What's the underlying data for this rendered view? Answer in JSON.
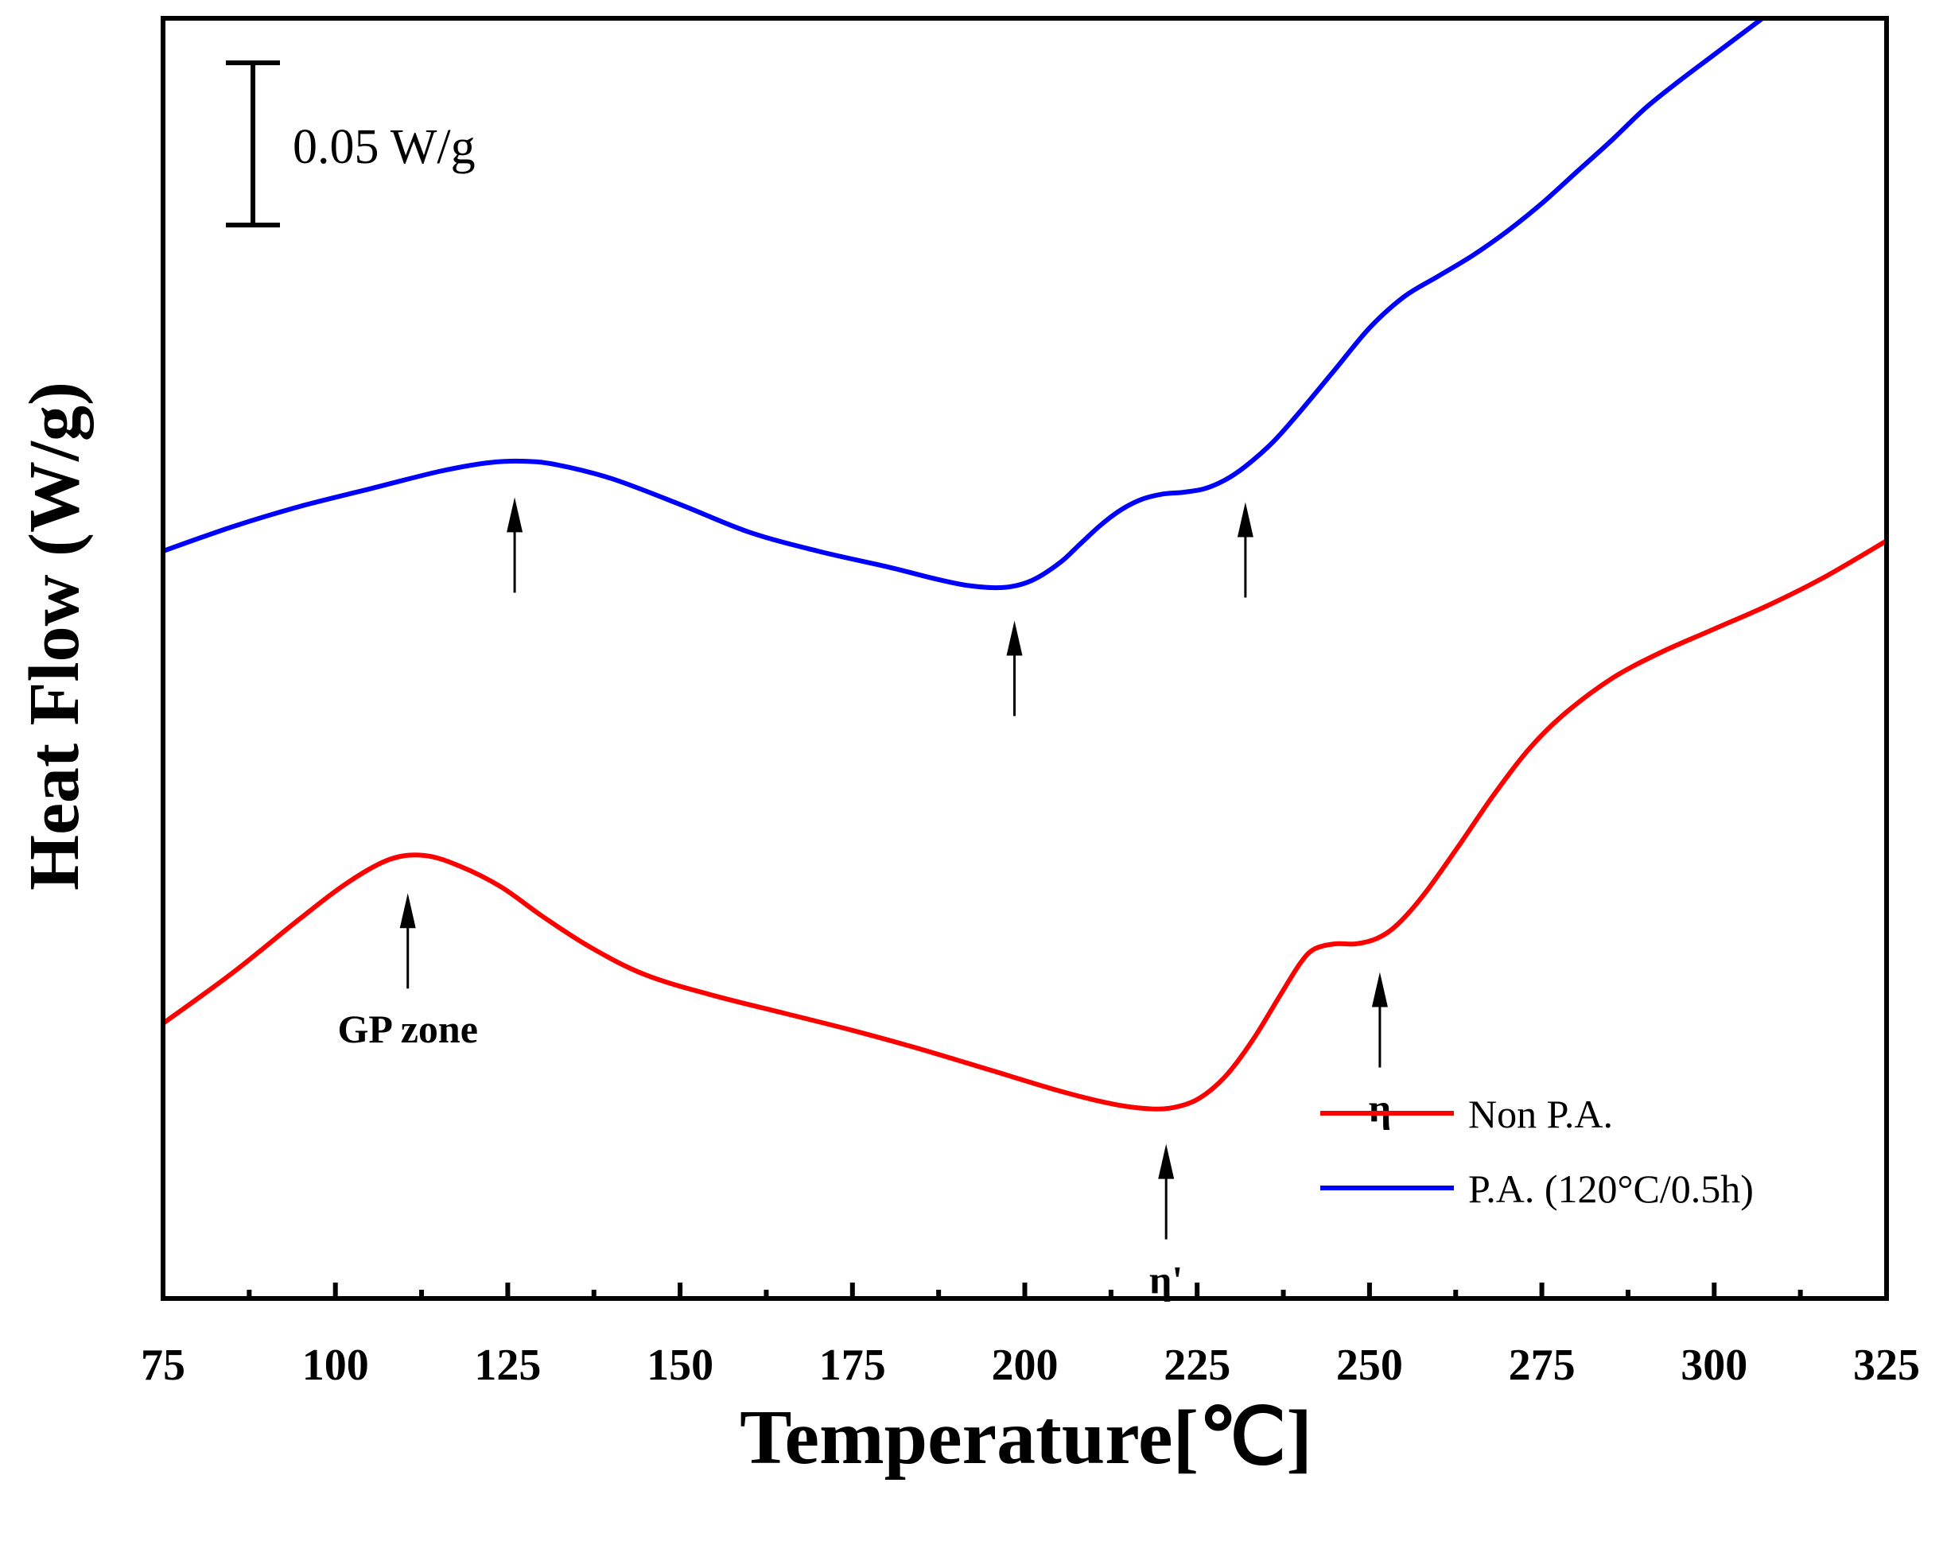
{
  "chart_data": {
    "type": "line",
    "xlabel": "Temperature[℃]",
    "ylabel": "Heat Flow (W/g)",
    "xlim": [
      75,
      325
    ],
    "ylim": [
      -0.64,
      0.1
    ],
    "x_ticks": [
      75,
      100,
      125,
      150,
      175,
      200,
      225,
      250,
      275,
      300,
      325
    ],
    "minor_x_step": 12.5,
    "grid": false,
    "legend_position": "bottom-right",
    "scale_bar": {
      "label": "0.05 W/g",
      "value": 0.05
    },
    "series": [
      {
        "name": "Non P.A.",
        "color": "#ff0000",
        "x": [
          75,
          85,
          95,
          102,
          108,
          113,
          118,
          124,
          130,
          137,
          145,
          155,
          165,
          175,
          185,
          195,
          205,
          212,
          217,
          221,
          225,
          229,
          233,
          237,
          240,
          242,
          245,
          248,
          251,
          254,
          258,
          263,
          268,
          273,
          278,
          285,
          292,
          300,
          308,
          316,
          325
        ],
        "y": [
          -0.481,
          -0.452,
          -0.42,
          -0.399,
          -0.386,
          -0.384,
          -0.39,
          -0.402,
          -0.419,
          -0.437,
          -0.453,
          -0.465,
          -0.475,
          -0.485,
          -0.496,
          -0.508,
          -0.52,
          -0.527,
          -0.53,
          -0.53,
          -0.525,
          -0.512,
          -0.491,
          -0.465,
          -0.446,
          -0.438,
          -0.435,
          -0.435,
          -0.432,
          -0.424,
          -0.406,
          -0.378,
          -0.349,
          -0.323,
          -0.303,
          -0.282,
          -0.267,
          -0.253,
          -0.239,
          -0.223,
          -0.202
        ]
      },
      {
        "name": "P.A. (120°C/0.5h)",
        "color": "#0000ff",
        "x": [
          75,
          85,
          95,
          105,
          115,
          122,
          127,
          132,
          140,
          150,
          160,
          170,
          180,
          187,
          192,
          197,
          201,
          205,
          208,
          211,
          214,
          217,
          220,
          223,
          226,
          229,
          232,
          236,
          240,
          245,
          250,
          255,
          260,
          265,
          270,
          275,
          280,
          285,
          290,
          295,
          300,
          305,
          310,
          313
        ],
        "y": [
          -0.208,
          -0.194,
          -0.182,
          -0.172,
          -0.162,
          -0.157,
          -0.156,
          -0.158,
          -0.166,
          -0.181,
          -0.197,
          -0.208,
          -0.217,
          -0.224,
          -0.228,
          -0.229,
          -0.225,
          -0.215,
          -0.204,
          -0.193,
          -0.184,
          -0.178,
          -0.175,
          -0.174,
          -0.172,
          -0.167,
          -0.159,
          -0.145,
          -0.127,
          -0.103,
          -0.079,
          -0.061,
          -0.049,
          -0.037,
          -0.023,
          -0.007,
          0.011,
          0.029,
          0.048,
          0.064,
          0.079,
          0.094,
          0.109,
          0.118
        ]
      }
    ],
    "annotations": [
      {
        "series": "P.A. (120°C/0.5h)",
        "x": 126,
        "label": ""
      },
      {
        "series": "P.A. (120°C/0.5h)",
        "x": 198.5,
        "label": ""
      },
      {
        "series": "P.A. (120°C/0.5h)",
        "x": 232,
        "label": ""
      },
      {
        "series": "Non P.A.",
        "x": 110.5,
        "label": "GP zone"
      },
      {
        "series": "Non P.A.",
        "x": 220.5,
        "label": "η'"
      },
      {
        "series": "Non P.A.",
        "x": 251.5,
        "label": "η"
      }
    ]
  }
}
